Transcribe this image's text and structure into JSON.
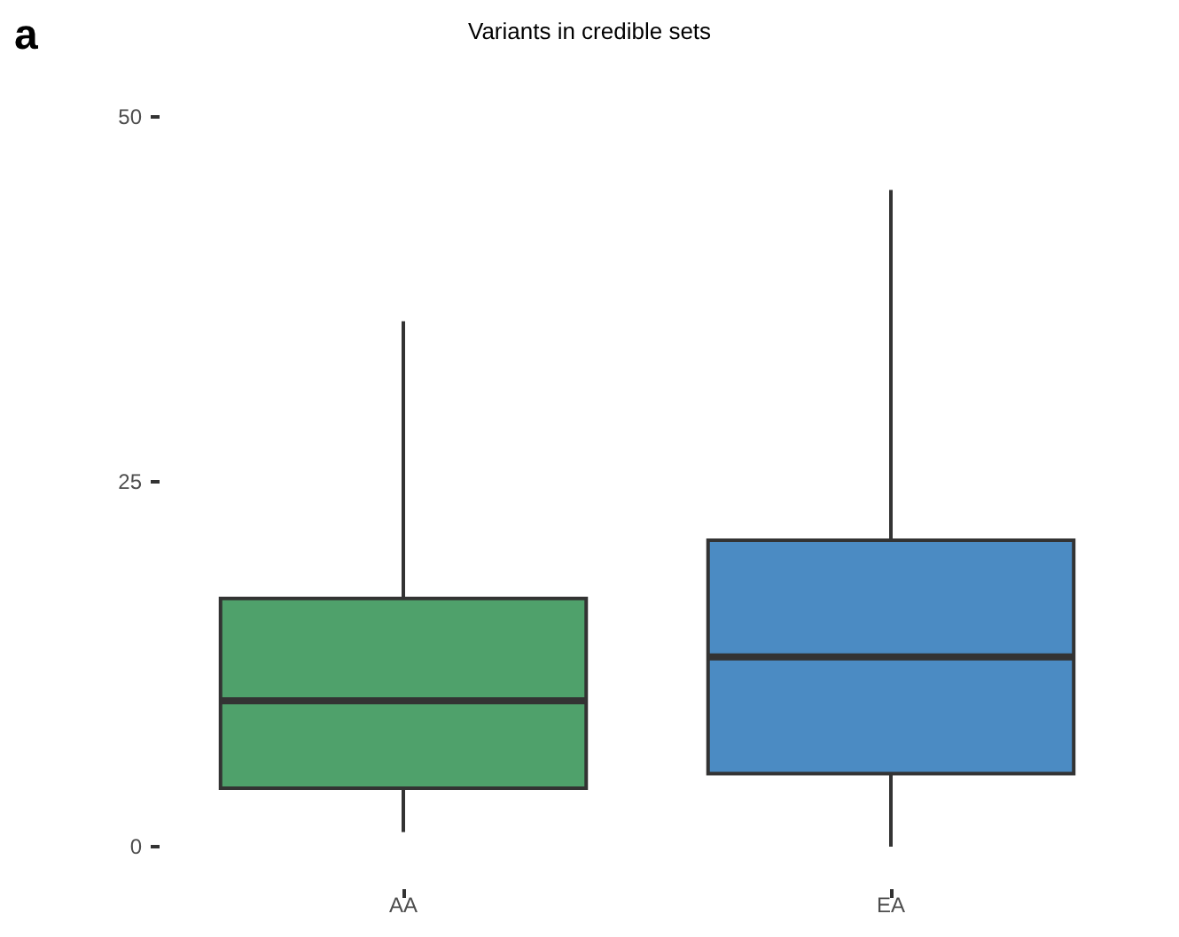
{
  "chart_data": {
    "type": "box",
    "title": "Variants in credible sets",
    "annotations": [
      "a"
    ],
    "categories": [
      "AA",
      "EA"
    ],
    "boxes": [
      {
        "low": 1,
        "q1": 4,
        "median": 10,
        "q3": 17,
        "high": 36
      },
      {
        "low": 0,
        "q1": 5,
        "median": 13,
        "q3": 21,
        "high": 45
      }
    ],
    "colors": [
      "#4fa16b",
      "#4b8bc3"
    ],
    "ylim": [
      0,
      50
    ],
    "yticks": [
      0,
      25,
      50
    ],
    "grid": false
  }
}
